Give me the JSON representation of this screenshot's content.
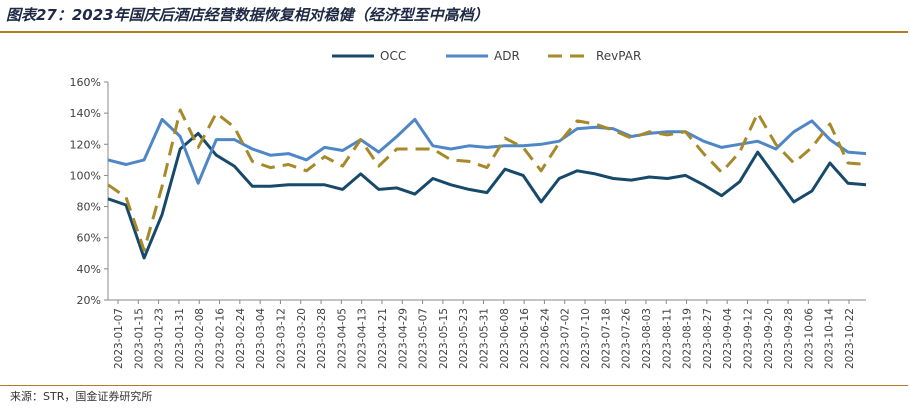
{
  "title": "图表27：2023年国庆后酒店经营数据恢复相对稳健（经济型至中高档）",
  "source": "来源：STR，国金证券研究所",
  "colors": {
    "OCC": "#17496b",
    "ADR": "#4f87c6",
    "RevPAR": "#a7892a",
    "rule": "#b07d20"
  },
  "chart_data": {
    "type": "line",
    "legend_position": "top-center",
    "grid": false,
    "ylim": [
      20,
      160
    ],
    "y_ticks": [
      "20%",
      "40%",
      "60%",
      "80%",
      "100%",
      "120%",
      "140%",
      "160%"
    ],
    "y_tick_values": [
      20,
      40,
      60,
      80,
      100,
      120,
      140,
      160
    ],
    "x_tick_labels": [
      "2023-01-07",
      "2023-01-15",
      "2023-01-23",
      "2023-01-31",
      "2023-02-08",
      "2023-02-16",
      "2023-02-24",
      "2023-03-04",
      "2023-03-12",
      "2023-03-20",
      "2023-03-28",
      "2023-04-05",
      "2023-04-13",
      "2023-04-21",
      "2023-04-29",
      "2023-05-07",
      "2023-05-15",
      "2023-05-23",
      "2023-05-31",
      "2023-06-08",
      "2023-06-16",
      "2023-06-24",
      "2023-07-02",
      "2023-07-10",
      "2023-07-18",
      "2023-07-26",
      "2023-08-03",
      "2023-08-11",
      "2023-08-19",
      "2023-08-27",
      "2023-09-04",
      "2023-09-12",
      "2023-09-20",
      "2023-09-28",
      "2023-10-06",
      "2023-10-14",
      "2023-10-22"
    ],
    "series": [
      {
        "name": "OCC",
        "style": "solid",
        "values": [
          85,
          81,
          47,
          75,
          117,
          127,
          113,
          106,
          93,
          93,
          94,
          94,
          94,
          91,
          101,
          91,
          92,
          88,
          98,
          94,
          91,
          89,
          104,
          100,
          83,
          98,
          103,
          101,
          98,
          97,
          99,
          98,
          100,
          94,
          87,
          96,
          115,
          99,
          83,
          90,
          108,
          95,
          94
        ]
      },
      {
        "name": "ADR",
        "style": "solid",
        "values": [
          110,
          107,
          110,
          136,
          125,
          95,
          123,
          123,
          117,
          113,
          114,
          110,
          118,
          116,
          123,
          115,
          125,
          136,
          119,
          117,
          119,
          118,
          119,
          119,
          120,
          122,
          130,
          131,
          130,
          125,
          127,
          128,
          128,
          122,
          118,
          120,
          122,
          117,
          128,
          135,
          123,
          115,
          114
        ]
      },
      {
        "name": "RevPAR",
        "style": "dashed",
        "values": [
          94,
          86,
          52,
          93,
          142,
          118,
          140,
          131,
          109,
          105,
          107,
          103,
          112,
          106,
          123,
          106,
          117,
          117,
          117,
          110,
          109,
          105,
          124,
          118,
          103,
          121,
          135,
          133,
          129,
          124,
          128,
          126,
          128,
          114,
          102,
          115,
          140,
          120,
          108,
          118,
          133,
          108,
          107
        ]
      }
    ]
  }
}
